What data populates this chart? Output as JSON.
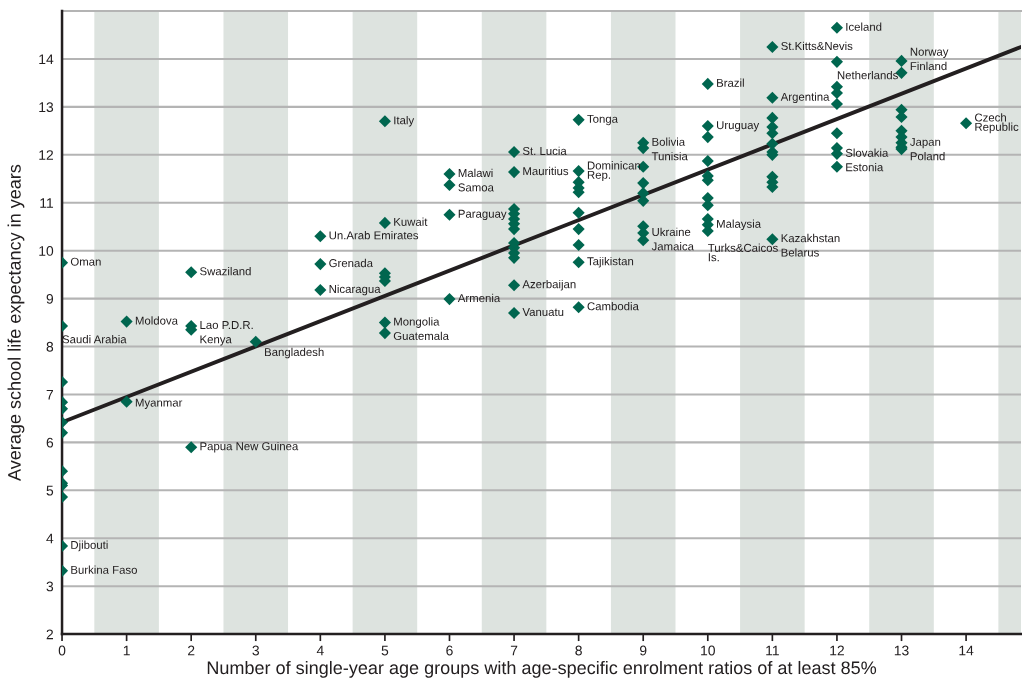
{
  "chart_data": {
    "type": "scatter",
    "xlabel": "Number of single-year age groups with age-specific enrolment ratios of at least 85%",
    "ylabel": "Average school life expectancy in years",
    "xlim": [
      0,
      14.85
    ],
    "ylim": [
      2,
      15
    ],
    "xticks": [
      0,
      1,
      2,
      3,
      4,
      5,
      6,
      7,
      8,
      9,
      10,
      11,
      12,
      13,
      14
    ],
    "yticks": [
      2,
      3,
      4,
      5,
      6,
      7,
      8,
      9,
      10,
      11,
      12,
      13,
      14
    ],
    "grid": "y",
    "marker": "diamond",
    "bands": [
      {
        "axis": "x",
        "from": 0.5,
        "to": 1.5,
        "color": "#dde3df"
      },
      {
        "axis": "x",
        "from": 2.5,
        "to": 3.5,
        "color": "#dde3df"
      },
      {
        "axis": "x",
        "from": 4.5,
        "to": 5.5,
        "color": "#dde3df"
      },
      {
        "axis": "x",
        "from": 6.5,
        "to": 7.5,
        "color": "#dde3df"
      },
      {
        "axis": "x",
        "from": 8.5,
        "to": 9.5,
        "color": "#dde3df"
      },
      {
        "axis": "x",
        "from": 10.5,
        "to": 11.5,
        "color": "#dde3df"
      },
      {
        "axis": "x",
        "from": 12.5,
        "to": 13.5,
        "color": "#dde3df"
      },
      {
        "axis": "x",
        "from": 14.5,
        "to": 14.85,
        "color": "#dde3df"
      }
    ],
    "series": [
      {
        "color": "#00664f",
        "x": [
          0,
          0,
          0,
          0,
          0,
          0,
          0,
          0,
          0,
          0,
          0,
          0,
          0,
          1,
          1,
          2,
          2,
          2,
          2,
          3,
          4,
          4,
          4,
          5,
          5,
          5,
          5,
          5,
          5,
          5,
          6,
          6,
          6,
          6,
          7,
          7,
          7,
          7,
          7,
          7,
          7,
          7,
          7,
          7,
          7,
          7,
          7,
          8,
          8,
          8,
          8,
          8,
          8,
          8,
          8,
          8,
          8,
          9,
          9,
          9,
          9,
          9,
          9,
          9,
          9,
          9,
          10,
          10,
          10,
          10,
          10,
          10,
          10,
          10,
          10,
          10,
          10,
          11,
          11,
          11,
          11,
          11,
          11,
          11,
          11,
          11,
          11,
          11,
          11,
          12,
          12,
          12,
          12,
          12,
          12,
          12,
          12,
          12,
          13,
          13,
          13,
          13,
          13,
          13,
          13,
          13,
          13,
          14
        ],
        "values": [
          9.75,
          8.43,
          7.26,
          6.84,
          6.7,
          6.42,
          6.2,
          5.4,
          5.15,
          5.1,
          4.86,
          3.84,
          3.32,
          8.52,
          6.85,
          9.55,
          8.43,
          8.35,
          5.9,
          8.1,
          10.3,
          9.72,
          9.18,
          12.7,
          10.58,
          9.53,
          9.45,
          9.37,
          8.5,
          8.28,
          11.6,
          11.37,
          10.75,
          8.99,
          12.06,
          11.64,
          10.87,
          10.77,
          10.66,
          10.56,
          10.45,
          10.16,
          10.06,
          9.95,
          9.85,
          9.28,
          8.7,
          12.73,
          11.66,
          11.43,
          11.31,
          11.22,
          10.79,
          10.45,
          10.12,
          9.76,
          8.82,
          12.25,
          12.14,
          11.75,
          11.41,
          11.2,
          11.04,
          10.51,
          10.37,
          10.22,
          13.48,
          12.6,
          12.37,
          11.87,
          11.56,
          11.47,
          11.1,
          10.95,
          10.66,
          10.54,
          10.41,
          14.25,
          13.19,
          12.77,
          12.58,
          12.45,
          12.23,
          12.06,
          12.0,
          11.54,
          11.43,
          11.33,
          10.24,
          14.65,
          13.94,
          13.42,
          13.29,
          13.06,
          12.45,
          12.14,
          12.02,
          11.75,
          13.96,
          13.71,
          12.94,
          12.79,
          12.5,
          12.37,
          12.25,
          12.16,
          12.12,
          12.66
        ]
      },
      {
        "type": "line",
        "color": "#231f20",
        "x": [
          0,
          14.85
        ],
        "values": [
          6.42,
          14.25
        ],
        "marker": "none"
      }
    ],
    "annotations": [
      {
        "text": "Oman",
        "x": 0,
        "y": 9.75
      },
      {
        "text": "Saudi Arabia",
        "x": 0,
        "y": 8.43
      },
      {
        "text": "Djibouti",
        "x": 0,
        "y": 3.84
      },
      {
        "text": "Burkina Faso",
        "x": 0,
        "y": 3.32
      },
      {
        "text": "Moldova",
        "x": 1,
        "y": 8.52
      },
      {
        "text": "Myanmar",
        "x": 1,
        "y": 6.85
      },
      {
        "text": "Swaziland",
        "x": 2,
        "y": 9.55
      },
      {
        "text": "Lao P.D.R.",
        "x": 2,
        "y": 8.43
      },
      {
        "text": "Kenya",
        "x": 2,
        "y": 8.35
      },
      {
        "text": "Papua New Guinea",
        "x": 2,
        "y": 5.9
      },
      {
        "text": "Bangladesh",
        "x": 3,
        "y": 8.1
      },
      {
        "text": "Un.Arab Emirates",
        "x": 4,
        "y": 10.3
      },
      {
        "text": "Grenada",
        "x": 4,
        "y": 9.72
      },
      {
        "text": "Nicaragua",
        "x": 4,
        "y": 9.18
      },
      {
        "text": "Italy",
        "x": 5,
        "y": 12.7
      },
      {
        "text": "Kuwait",
        "x": 5,
        "y": 10.58
      },
      {
        "text": "Mongolia",
        "x": 5,
        "y": 8.5
      },
      {
        "text": "Guatemala",
        "x": 5,
        "y": 8.28
      },
      {
        "text": "Malawi",
        "x": 6,
        "y": 11.6
      },
      {
        "text": "Samoa",
        "x": 6,
        "y": 11.37
      },
      {
        "text": "Paraguay",
        "x": 6,
        "y": 10.75
      },
      {
        "text": "Armenia",
        "x": 6,
        "y": 8.99
      },
      {
        "text": "St. Lucia",
        "x": 7,
        "y": 12.06
      },
      {
        "text": "Mauritius",
        "x": 7,
        "y": 11.64
      },
      {
        "text": "Azerbaijan",
        "x": 7,
        "y": 9.28
      },
      {
        "text": "Vanuatu",
        "x": 7,
        "y": 8.7
      },
      {
        "text": "Tonga",
        "x": 8,
        "y": 12.73
      },
      {
        "text": "Dominican\nRep.",
        "x": 8,
        "y": 11.66
      },
      {
        "text": "Tajikistan",
        "x": 8,
        "y": 9.76
      },
      {
        "text": "Cambodia",
        "x": 8,
        "y": 8.82
      },
      {
        "text": "Bolivia",
        "x": 9,
        "y": 12.25
      },
      {
        "text": "Tunisia",
        "x": 9,
        "y": 12.14
      },
      {
        "text": "Ukraine",
        "x": 9,
        "y": 10.37
      },
      {
        "text": "Jamaica",
        "x": 9,
        "y": 10.22
      },
      {
        "text": "Brazil",
        "x": 10,
        "y": 13.48
      },
      {
        "text": "Uruguay",
        "x": 10,
        "y": 12.6
      },
      {
        "text": "Malaysia",
        "x": 10,
        "y": 10.54
      },
      {
        "text": "Turks&Caicos\nIs.",
        "x": 10,
        "y": 10.41
      },
      {
        "text": "St.Kitts&Nevis",
        "x": 11,
        "y": 14.25
      },
      {
        "text": "Argentina",
        "x": 11,
        "y": 13.19
      },
      {
        "text": "Kazakhstan",
        "x": 11,
        "y": 10.24
      },
      {
        "text": "Belarus",
        "x": 11,
        "y": 10.24
      },
      {
        "text": "Iceland",
        "x": 12,
        "y": 14.65
      },
      {
        "text": "Netherlands",
        "x": 12,
        "y": 13.94
      },
      {
        "text": "Slovakia",
        "x": 12,
        "y": 12.02
      },
      {
        "text": "Estonia",
        "x": 12,
        "y": 11.75
      },
      {
        "text": "Norway",
        "x": 13,
        "y": 13.96
      },
      {
        "text": "Finland",
        "x": 13,
        "y": 13.71
      },
      {
        "text": "Japan",
        "x": 13,
        "y": 12.25
      },
      {
        "text": "Poland",
        "x": 13,
        "y": 12.12
      },
      {
        "text": "Czech\nRepublic",
        "x": 14,
        "y": 12.66
      }
    ]
  }
}
